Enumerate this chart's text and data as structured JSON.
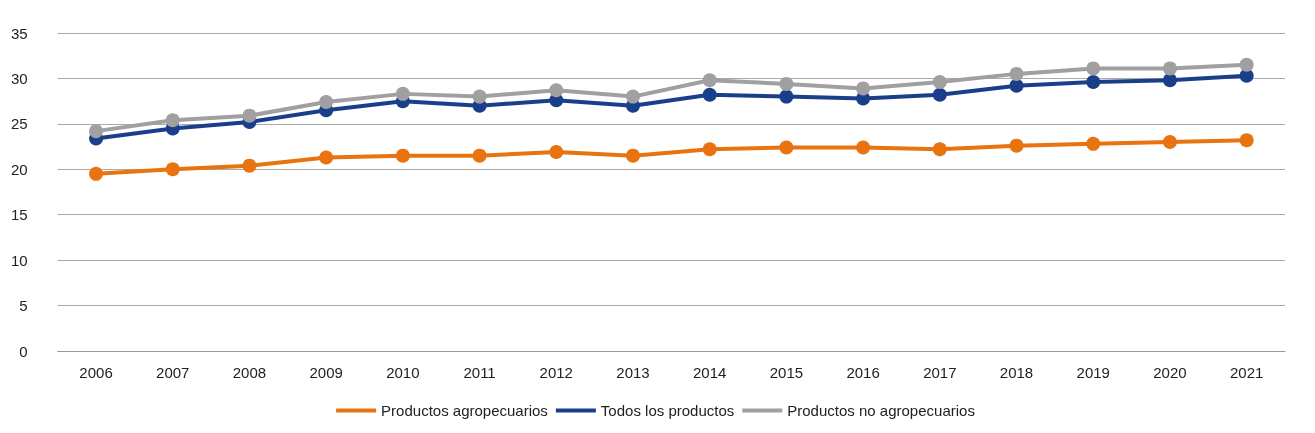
{
  "chart_data": {
    "type": "line",
    "categories": [
      "2006",
      "2007",
      "2008",
      "2009",
      "2010",
      "2011",
      "2012",
      "2013",
      "2014",
      "2015",
      "2016",
      "2017",
      "2018",
      "2019",
      "2020",
      "2021"
    ],
    "series": [
      {
        "name": "Productos agropecuarios",
        "color": "#e8730f",
        "values": [
          19.5,
          20.0,
          20.4,
          21.3,
          21.5,
          21.5,
          21.9,
          21.5,
          22.2,
          22.4,
          22.4,
          22.2,
          22.6,
          22.8,
          23.0,
          23.2
        ]
      },
      {
        "name": "Todos los productos",
        "color": "#1a3f8a",
        "values": [
          23.4,
          24.5,
          25.2,
          26.5,
          27.5,
          27.0,
          27.6,
          27.0,
          28.2,
          28.0,
          27.8,
          28.2,
          29.2,
          29.6,
          29.8,
          30.3
        ]
      },
      {
        "name": "Productos no agropecuarios",
        "color": "#a0a0a0",
        "values": [
          24.2,
          25.4,
          25.9,
          27.4,
          28.3,
          28.0,
          28.7,
          28.0,
          29.8,
          29.4,
          28.9,
          29.6,
          30.5,
          31.1,
          31.1,
          31.5
        ]
      }
    ],
    "ylim": [
      0,
      35
    ],
    "yticks": [
      0,
      5,
      10,
      15,
      20,
      25,
      30,
      35
    ],
    "grid": "y",
    "legend": "bottom",
    "marker": "circle",
    "line_style": "solid"
  }
}
